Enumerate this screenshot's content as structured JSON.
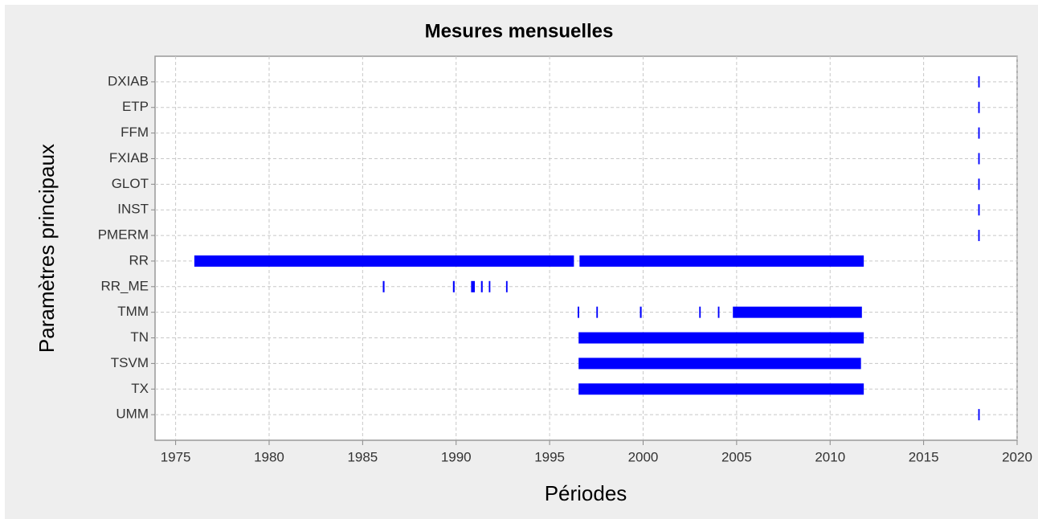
{
  "chart_data": {
    "type": "gantt",
    "title": "Mesures mensuelles",
    "x_label": "Périodes",
    "y_label": "Paramètres principaux",
    "categories": [
      "DXIAB",
      "ETP",
      "FFM",
      "FXIAB",
      "GLOT",
      "INST",
      "PMERM",
      "RR",
      "RR_ME",
      "TMM",
      "TN",
      "TSVM",
      "TX",
      "UMM"
    ],
    "intervals": [
      [
        [
          2017.92,
          2018.0
        ]
      ],
      [
        [
          2017.92,
          2018.0
        ]
      ],
      [
        [
          2017.92,
          2018.0
        ]
      ],
      [
        [
          2017.92,
          2018.0
        ]
      ],
      [
        [
          2017.92,
          2018.0
        ]
      ],
      [
        [
          2017.92,
          2018.0
        ]
      ],
      [
        [
          2017.92,
          2018.0
        ]
      ],
      [
        [
          1976.0,
          1996.3
        ],
        [
          1996.6,
          2011.8
        ]
      ],
      [
        [
          1986.08,
          1986.17
        ],
        [
          1989.83,
          1989.92
        ],
        [
          1990.8,
          1991.0
        ],
        [
          1991.33,
          1991.42
        ],
        [
          1991.75,
          1991.83
        ],
        [
          1992.67,
          1992.75
        ]
      ],
      [
        [
          1996.5,
          1996.58
        ],
        [
          1997.5,
          1997.58
        ],
        [
          1999.83,
          1999.92
        ],
        [
          2003.0,
          2003.08
        ],
        [
          2004.0,
          2004.08
        ],
        [
          2004.8,
          2011.7
        ]
      ],
      [
        [
          1996.55,
          2011.8
        ]
      ],
      [
        [
          1996.55,
          2011.65
        ]
      ],
      [
        [
          1996.55,
          2011.8
        ]
      ],
      [
        [
          2017.92,
          2018.0
        ]
      ]
    ],
    "color": "#0000ff",
    "xlim": [
      1973.9,
      2020
    ],
    "xticks": [
      1975,
      1980,
      1985,
      1990,
      1995,
      2000,
      2005,
      2010,
      2015,
      2020
    ],
    "grid": true
  }
}
